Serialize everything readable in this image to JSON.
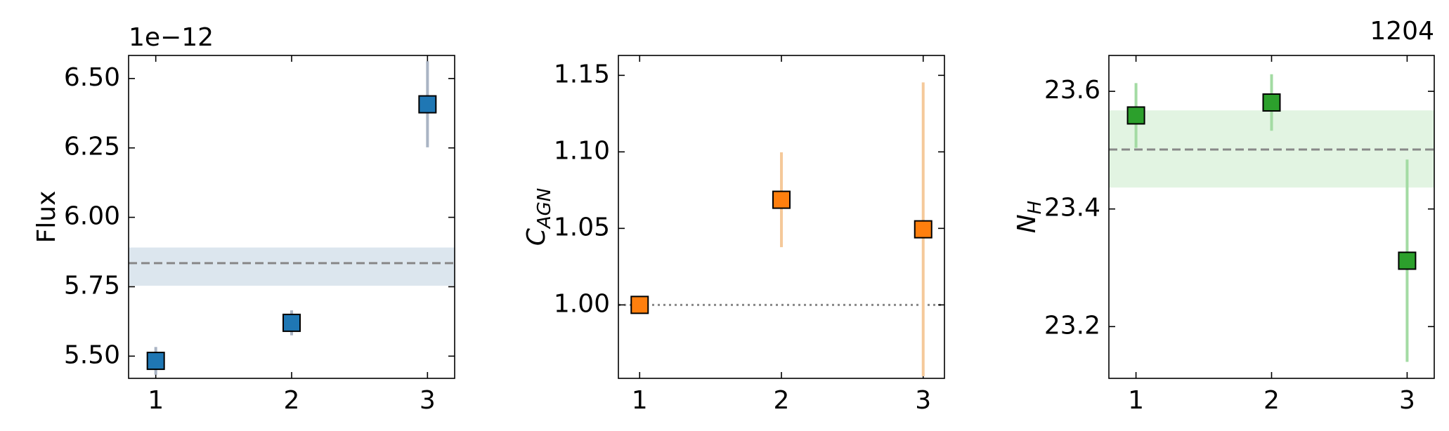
{
  "chart_data": [
    {
      "type": "scatter",
      "ylabel": "Flux",
      "offset_label": "1e−12",
      "x": [
        1,
        2,
        3
      ],
      "values": [
        5.483,
        5.62,
        6.407
      ],
      "yerr": [
        0.05,
        0.045,
        0.155
      ],
      "color": "#1f77b4",
      "err_color": "#aab4c4",
      "hline": 5.835,
      "hline_style": "dashed",
      "band": [
        5.755,
        5.89
      ],
      "band_color": "#dce6ee",
      "xlim": [
        0.8,
        3.2
      ],
      "xticks": [
        1,
        2,
        3
      ],
      "ylim": [
        5.42,
        6.583
      ],
      "yticks": [
        {
          "value": 5.5,
          "label": "5.50"
        },
        {
          "value": 5.75,
          "label": "5.75"
        },
        {
          "value": 6.0,
          "label": "6.00"
        },
        {
          "value": 6.25,
          "label": "6.25"
        },
        {
          "value": 6.5,
          "label": "6.50"
        }
      ]
    },
    {
      "type": "scatter",
      "ylabel": "C",
      "ylabel_sub": "AGN",
      "x": [
        1,
        2,
        3
      ],
      "values": [
        1.0,
        1.0687,
        1.0494
      ],
      "yerr": [
        null,
        0.031,
        0.096
      ],
      "color": "#ff7f0e",
      "err_color": "#f5c99a",
      "hline": 1.0,
      "hline_style": "dotted",
      "xlim": [
        0.85,
        3.15
      ],
      "xticks": [
        1,
        2,
        3
      ],
      "ylim": [
        0.952,
        1.163
      ],
      "yticks": [
        {
          "value": 1.0,
          "label": "1.00"
        },
        {
          "value": 1.05,
          "label": "1.05"
        },
        {
          "value": 1.1,
          "label": "1.10"
        },
        {
          "value": 1.15,
          "label": "1.15"
        }
      ]
    },
    {
      "type": "scatter",
      "ylabel": "N",
      "ylabel_sub": "H",
      "title": "1204",
      "x": [
        1,
        2,
        3
      ],
      "values": [
        23.559,
        23.581,
        23.312
      ],
      "yerr": [
        0.055,
        0.048,
        0.172
      ],
      "color": "#2ca02c",
      "err_color": "#a3dba3",
      "hline": 23.501,
      "hline_style": "dashed",
      "band": [
        23.437,
        23.567
      ],
      "band_color": "#e2f4e2",
      "xlim": [
        0.8,
        3.2
      ],
      "xticks": [
        1,
        2,
        3
      ],
      "ylim": [
        23.112,
        23.661
      ],
      "yticks": [
        23.2,
        23.4,
        23.6
      ]
    }
  ]
}
